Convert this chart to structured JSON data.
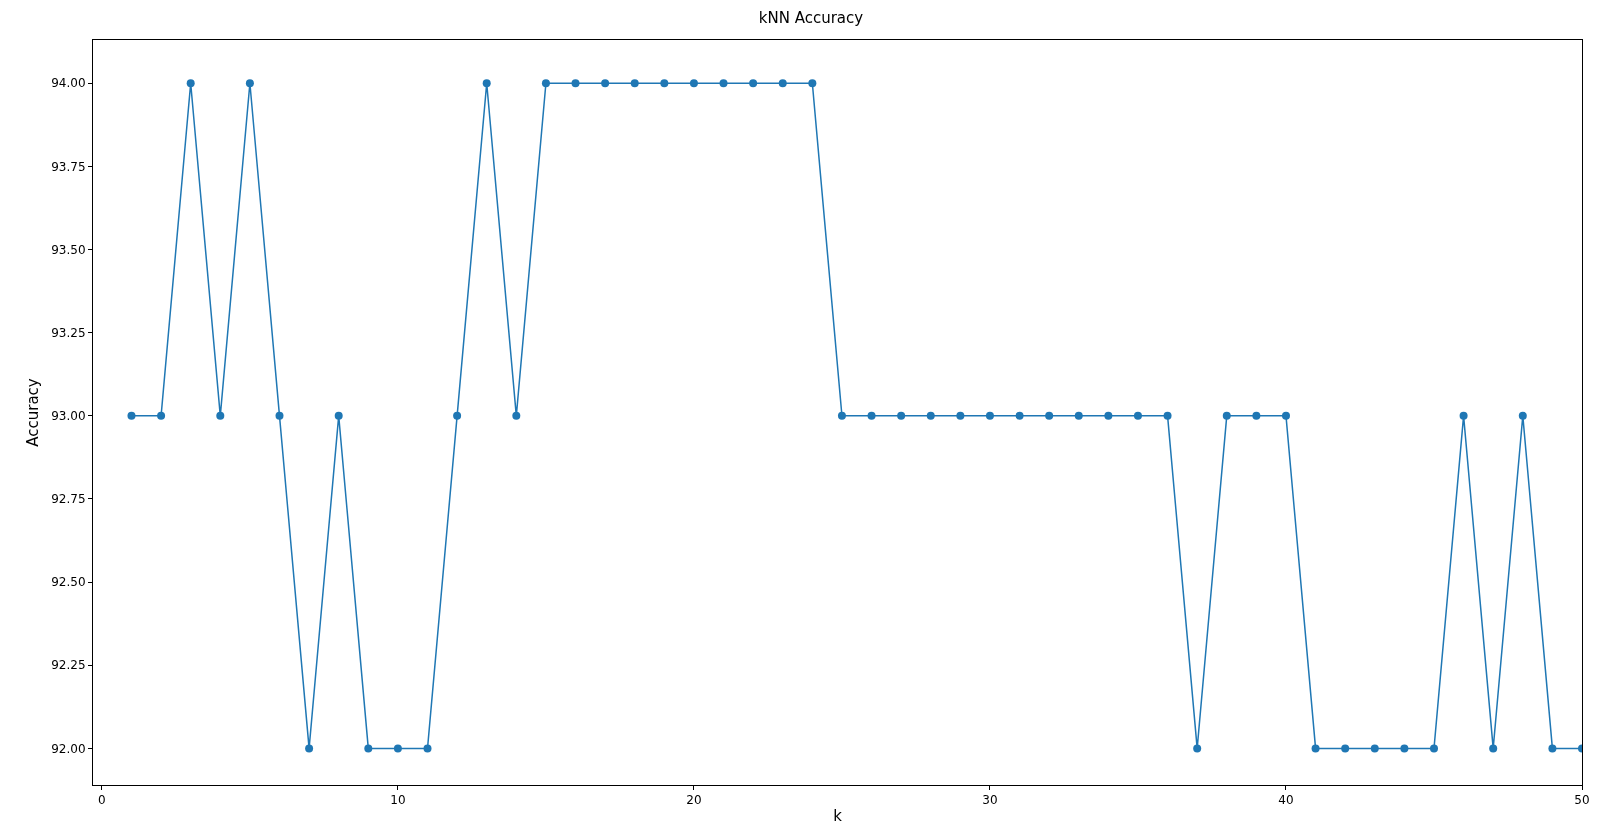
{
  "chart_data": {
    "type": "line",
    "title": "kNN Accuracy",
    "xlabel": "k",
    "ylabel": "Accuracy",
    "x": [
      1,
      2,
      3,
      4,
      5,
      6,
      7,
      8,
      9,
      10,
      11,
      12,
      13,
      14,
      15,
      16,
      17,
      18,
      19,
      20,
      21,
      22,
      23,
      24,
      25,
      26,
      27,
      28,
      29,
      30,
      31,
      32,
      33,
      34,
      35,
      36,
      37,
      38,
      39,
      40,
      41,
      42,
      43,
      44,
      45,
      46,
      47,
      48,
      49,
      50
    ],
    "series": [
      {
        "color": "#1f77b4",
        "values": [
          93,
          93,
          94,
          93,
          94,
          93,
          92,
          93,
          92,
          92,
          92,
          93,
          94,
          93,
          94,
          94,
          94,
          94,
          94,
          94,
          94,
          94,
          94,
          94,
          93,
          93,
          93,
          93,
          93,
          93,
          93,
          93,
          93,
          93,
          93,
          93,
          92,
          93,
          93,
          93,
          92,
          92,
          92,
          92,
          92,
          93,
          92,
          93,
          92,
          92
        ]
      }
    ],
    "xlim": [
      -0.3,
      50
    ],
    "xticks": [
      0,
      10,
      20,
      30,
      40,
      50
    ],
    "ylim": [
      91.89,
      94.13
    ],
    "yticks": [
      {
        "value": 92,
        "label": "92.00"
      },
      {
        "value": 92.25,
        "label": "92.25"
      },
      {
        "value": 92.5,
        "label": "92.50"
      },
      {
        "value": 92.75,
        "label": "92.75"
      },
      {
        "value": 93,
        "label": "93.00"
      },
      {
        "value": 93.25,
        "label": "93.25"
      },
      {
        "value": 93.5,
        "label": "93.50"
      },
      {
        "value": 93.75,
        "label": "93.75"
      },
      {
        "value": 94,
        "label": "94.00"
      }
    ],
    "marker": "circle",
    "line_style": "solid"
  }
}
